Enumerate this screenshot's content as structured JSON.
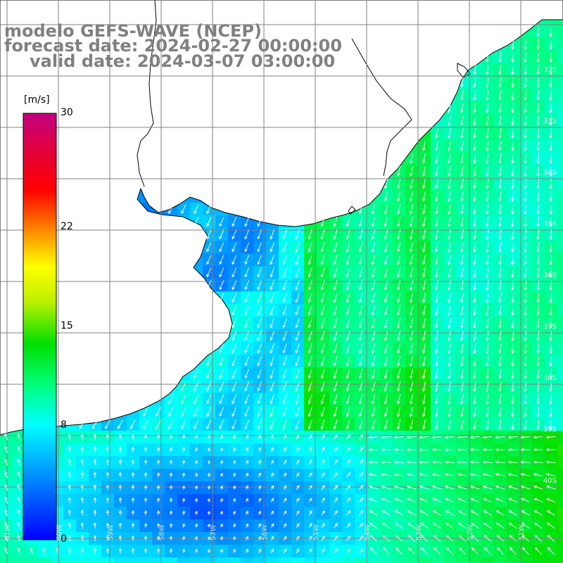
{
  "title": {
    "line1": "modelo GEFS-WAVE (NCEP)",
    "line2": "forecast date: 2024-02-27 00:00:00",
    "line3": "valid date: 2024-03-07 03:00:00"
  },
  "colorbar": {
    "unit": "[m/s]",
    "ticks": [
      "30",
      "22",
      "15",
      "8",
      "0"
    ],
    "tick_values": [
      30,
      22,
      15,
      8,
      0
    ],
    "range": [
      0,
      30
    ],
    "colors": [
      "#0000ff",
      "#00a0ff",
      "#00ffff",
      "#00ff80",
      "#00e000",
      "#80e000",
      "#ffff00",
      "#ff8000",
      "#ff0000",
      "#e00040",
      "#c00080"
    ]
  },
  "map": {
    "land_color": "#ffffff",
    "grid_color": "#808080",
    "arrow_color": "#ffffff",
    "lat_labels": [
      "32S",
      "33S",
      "34S",
      "35S",
      "36S",
      "37S",
      "38S",
      "39S",
      "40S"
    ],
    "lon_labels": [
      "61W",
      "60W",
      "59W",
      "58W",
      "57W",
      "56W",
      "55W",
      "54W",
      "53W",
      "52W",
      "51W"
    ]
  }
}
